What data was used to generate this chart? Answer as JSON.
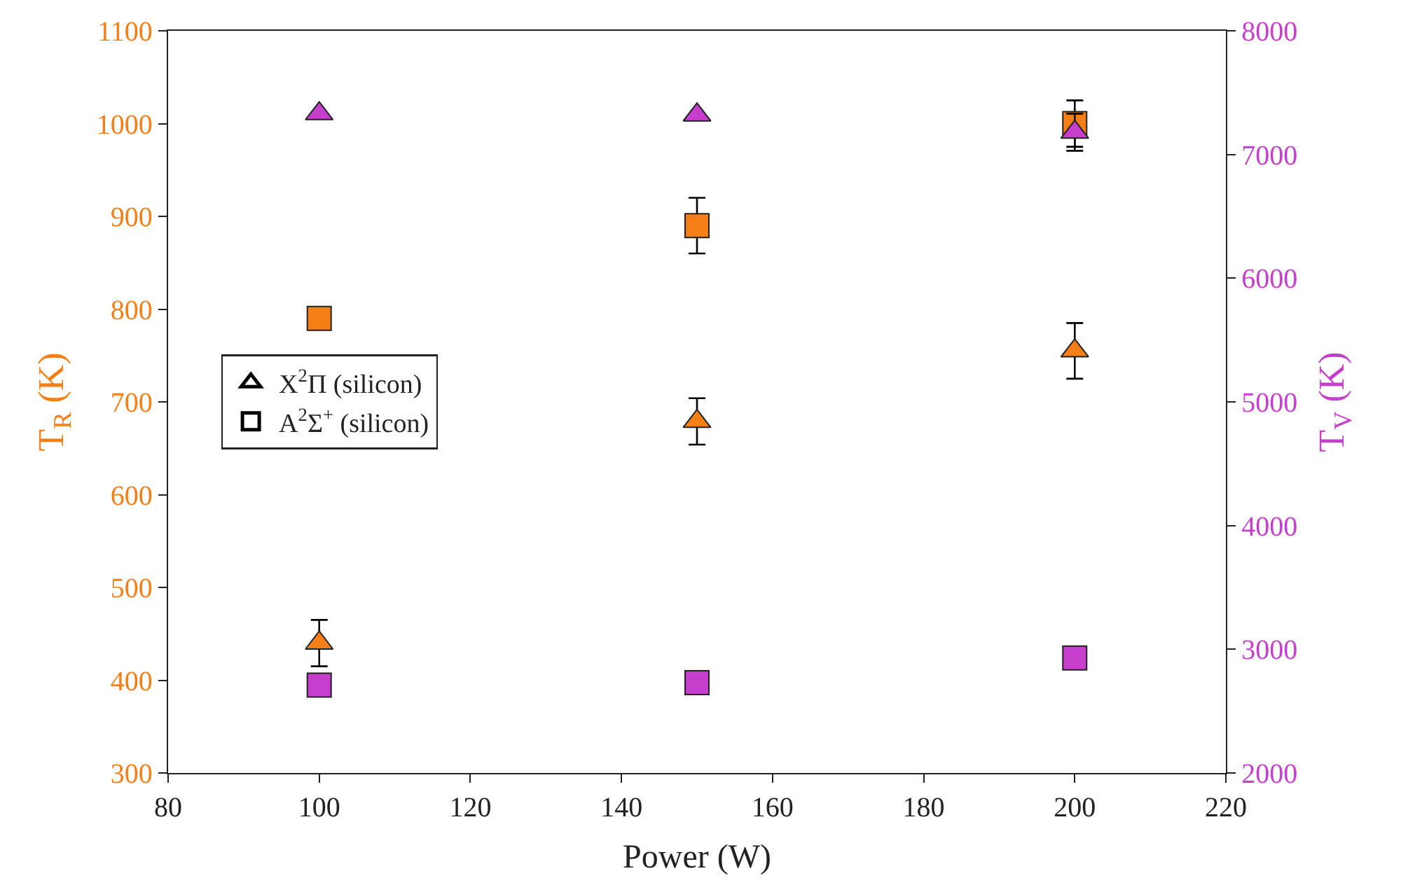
{
  "chart_data": {
    "type": "scatter",
    "xlabel": "Power (W)",
    "ylabel": "T$_{R}$ (K)",
    "y2label": "T$_{V}$ (K)",
    "x": [
      100,
      150,
      200
    ],
    "series": [
      {
        "color": "#f57f17",
        "marker": "triangle",
        "values": [
          440,
          679,
          755
        ],
        "errors": [
          25,
          25,
          30
        ]
      },
      {
        "color": "#f57f17",
        "marker": "square",
        "values": [
          790,
          890,
          1000
        ],
        "errors": [
          null,
          30,
          25
        ]
      },
      {
        "color": "#c63fcc",
        "marker": "triangle",
        "axis": "y2",
        "values": [
          7330,
          7320,
          7180
        ],
        "errors": [
          null,
          null,
          150
        ]
      },
      {
        "color": "#c63fcc",
        "marker": "square",
        "axis": "y2",
        "values": [
          2710,
          2730,
          2930
        ]
      },
      {
        "name": "X$^{2}$Π (silicon)",
        "color": "#000000",
        "marker": "triangle",
        "values": [
          null,
          null,
          null
        ]
      },
      {
        "name": "A$^{2}$Σ$^{+}$ (silicon)",
        "color": "#000000",
        "marker": "square",
        "values": [
          null,
          null,
          null
        ]
      }
    ],
    "xlim": [
      80,
      220
    ],
    "xticks": [
      80,
      100,
      120,
      140,
      160,
      180,
      200,
      220
    ],
    "ylim": [
      300,
      1100
    ],
    "yticks": [
      300,
      400,
      500,
      600,
      700,
      800,
      900,
      1000,
      1100
    ],
    "y2lim": [
      2000,
      8000
    ],
    "y2ticks": [
      2000,
      3000,
      4000,
      5000,
      6000,
      7000,
      8000
    ],
    "legend": "left"
  }
}
